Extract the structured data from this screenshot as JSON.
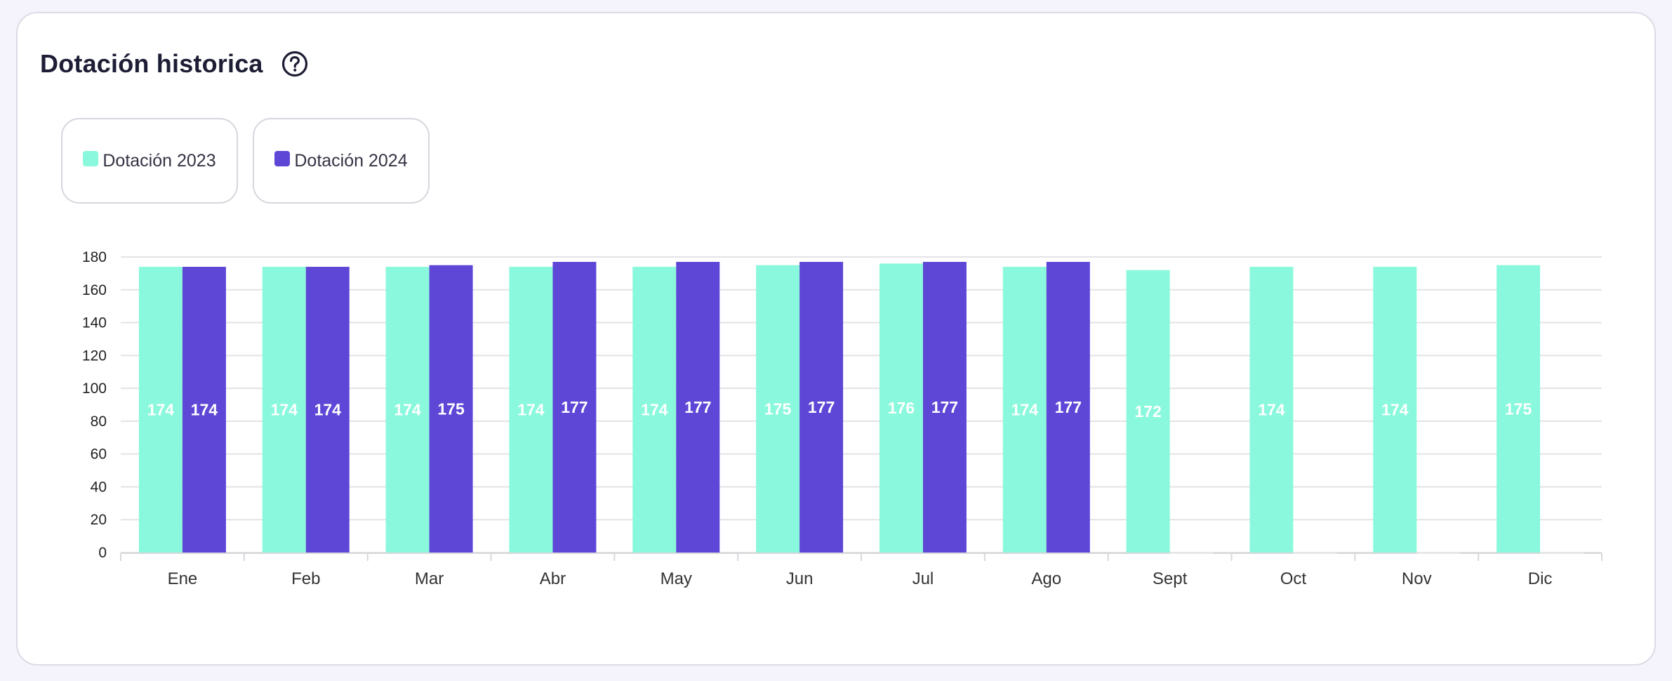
{
  "header": {
    "title": "Dotación historica",
    "help_icon": "question-circle-icon"
  },
  "legend": [
    {
      "label": "Dotación 2023",
      "color": "#8af8dc"
    },
    {
      "label": "Dotación 2024",
      "color": "#5e47d6"
    }
  ],
  "chart_data": {
    "type": "bar",
    "title": "Dotación historica",
    "xlabel": "",
    "ylabel": "",
    "ylim": [
      0,
      180
    ],
    "yticks": [
      0,
      20,
      40,
      60,
      80,
      100,
      120,
      140,
      160,
      180
    ],
    "grid": true,
    "legend_position": "top-left",
    "categories": [
      "Ene",
      "Feb",
      "Mar",
      "Abr",
      "May",
      "Jun",
      "Jul",
      "Ago",
      "Sept",
      "Oct",
      "Nov",
      "Dic"
    ],
    "series": [
      {
        "name": "Dotación 2023",
        "color": "#8af8dc",
        "label_color": "#ffffff",
        "values": [
          174,
          174,
          174,
          174,
          174,
          175,
          176,
          174,
          172,
          174,
          174,
          175
        ]
      },
      {
        "name": "Dotación 2024",
        "color": "#5e47d6",
        "label_color": "#ffffff",
        "values": [
          174,
          174,
          175,
          177,
          177,
          177,
          177,
          177,
          null,
          null,
          null,
          null
        ]
      }
    ]
  }
}
